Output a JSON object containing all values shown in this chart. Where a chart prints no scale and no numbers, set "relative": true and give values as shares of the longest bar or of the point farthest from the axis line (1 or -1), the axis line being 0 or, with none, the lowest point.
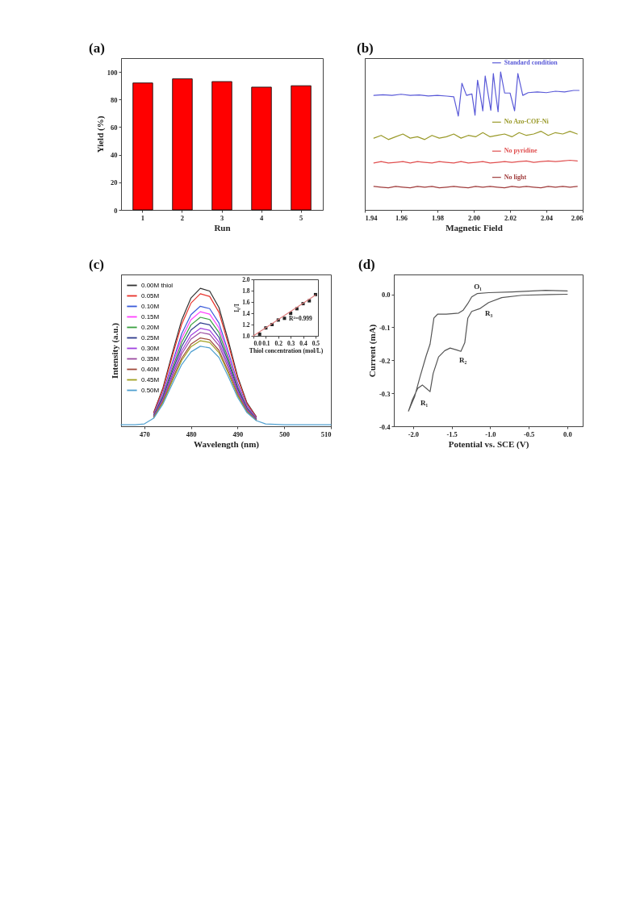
{
  "chart_data": [
    {
      "type": "bar",
      "title": "(a)",
      "xlabel": "Run",
      "ylabel": "Yield (%)",
      "categories": [
        "1",
        "2",
        "3",
        "4",
        "5"
      ],
      "values": [
        92,
        95,
        93,
        89,
        90
      ],
      "color": "#ff0000",
      "ylim": [
        0,
        110
      ],
      "yticks": [
        0,
        20,
        40,
        60,
        80,
        100
      ]
    },
    {
      "type": "line",
      "title": "(b)",
      "xlabel": "Magnetic Field",
      "relative": true,
      "legend": "right",
      "xlim": [
        1.94,
        2.06
      ],
      "xticks": [
        1.94,
        1.96,
        1.98,
        {
          "value": 2,
          "label": "2.00"
        },
        2.02,
        2.04,
        2.06
      ],
      "series": [
        {
          "name": "Standard condition",
          "color": "#5a5ad8",
          "x": [
            1.945,
            1.95,
            1.955,
            1.96,
            1.965,
            1.97,
            1.975,
            1.98,
            1.985,
            1.989,
            1.9915,
            1.9935,
            1.996,
            1.999,
            2.0007,
            2.0021,
            2.0035,
            2.005,
            2.0063,
            2.0078,
            2.0094,
            2.0108,
            2.012,
            2.0134,
            2.0148,
            2.017,
            2.02,
            2.0225,
            2.0243,
            2.027,
            2.03,
            2.035,
            2.04,
            2.045,
            2.05,
            2.055,
            2.058
          ],
          "values": [
            0.83,
            0.835,
            0.83,
            0.838,
            0.83,
            0.833,
            0.826,
            0.83,
            0.825,
            0.82,
            0.68,
            0.918,
            0.83,
            0.84,
            0.687,
            0.94,
            0.84,
            0.718,
            0.97,
            0.85,
            0.722,
            0.988,
            0.85,
            0.711,
            1.0,
            0.847,
            0.847,
            0.718,
            0.988,
            0.83,
            0.85,
            0.855,
            0.85,
            0.86,
            0.855,
            0.866,
            0.866
          ]
        },
        {
          "name": "No Azo-COF-Ni",
          "color": "#9a9a2a",
          "x": [
            1.945,
            1.949,
            1.953,
            1.957,
            1.961,
            1.965,
            1.969,
            1.973,
            1.977,
            1.981,
            1.985,
            1.989,
            1.993,
            1.997,
            2.001,
            2.005,
            2.009,
            2.013,
            2.017,
            2.021,
            2.025,
            2.029,
            2.033,
            2.037,
            2.041,
            2.045,
            2.049,
            2.053,
            2.057
          ],
          "values": [
            0.52,
            0.54,
            0.51,
            0.53,
            0.55,
            0.52,
            0.53,
            0.51,
            0.54,
            0.52,
            0.53,
            0.55,
            0.52,
            0.54,
            0.53,
            0.56,
            0.53,
            0.54,
            0.55,
            0.53,
            0.56,
            0.54,
            0.55,
            0.57,
            0.54,
            0.56,
            0.55,
            0.57,
            0.55
          ]
        },
        {
          "name": "No pyridine",
          "color": "#e05050",
          "x": [
            1.945,
            1.949,
            1.953,
            1.957,
            1.961,
            1.965,
            1.969,
            1.973,
            1.977,
            1.981,
            1.985,
            1.989,
            1.993,
            1.997,
            2.001,
            2.005,
            2.009,
            2.013,
            2.017,
            2.021,
            2.025,
            2.029,
            2.033,
            2.037,
            2.041,
            2.045,
            2.049,
            2.053,
            2.057
          ],
          "values": [
            0.34,
            0.35,
            0.34,
            0.345,
            0.35,
            0.34,
            0.35,
            0.345,
            0.34,
            0.35,
            0.345,
            0.34,
            0.35,
            0.34,
            0.345,
            0.35,
            0.34,
            0.345,
            0.35,
            0.345,
            0.35,
            0.355,
            0.345,
            0.35,
            0.355,
            0.35,
            0.355,
            0.36,
            0.355
          ]
        },
        {
          "name": "No light",
          "color": "#a03c3c",
          "x": [
            1.945,
            1.949,
            1.953,
            1.957,
            1.961,
            1.965,
            1.969,
            1.973,
            1.977,
            1.981,
            1.985,
            1.989,
            1.993,
            1.997,
            2.001,
            2.005,
            2.009,
            2.013,
            2.017,
            2.021,
            2.025,
            2.029,
            2.033,
            2.037,
            2.041,
            2.045,
            2.049,
            2.053,
            2.057
          ],
          "values": [
            0.17,
            0.165,
            0.16,
            0.17,
            0.165,
            0.16,
            0.17,
            0.165,
            0.17,
            0.16,
            0.165,
            0.17,
            0.165,
            0.16,
            0.17,
            0.165,
            0.17,
            0.165,
            0.16,
            0.17,
            0.165,
            0.17,
            0.165,
            0.16,
            0.17,
            0.165,
            0.17,
            0.165,
            0.17
          ]
        }
      ]
    },
    {
      "type": "line",
      "title": "(c)",
      "xlabel": "Wavelength (nm)",
      "ylabel": "Intensity (a.u.)",
      "relative": true,
      "legend": "top left",
      "xlim": [
        465,
        510
      ],
      "xticks": [
        470,
        480,
        490,
        500,
        510
      ],
      "x": [
        465,
        468,
        470,
        472,
        474,
        476,
        478,
        480,
        482,
        484,
        486,
        488,
        490,
        492,
        494,
        496,
        500,
        505,
        510
      ],
      "series": [
        {
          "name": "0.00M thiol",
          "color": "#333333",
          "values": [
            null,
            null,
            null,
            0.1,
            0.28,
            0.53,
            0.77,
            0.93,
            1.0,
            0.98,
            0.86,
            0.62,
            0.36,
            0.17,
            0.07,
            null,
            null,
            null,
            null
          ]
        },
        {
          "name": "0.05M",
          "color": "#e8312a",
          "values": [
            null,
            null,
            null,
            0.096,
            0.269,
            0.509,
            0.739,
            0.893,
            0.96,
            0.941,
            0.826,
            0.595,
            0.346,
            0.163,
            0.067,
            null,
            null,
            null,
            null
          ]
        },
        {
          "name": "0.10M",
          "color": "#3a5bd9",
          "values": [
            null,
            null,
            null,
            0.087,
            0.244,
            0.461,
            0.67,
            0.809,
            0.87,
            0.853,
            0.748,
            0.539,
            0.313,
            0.148,
            0.061,
            null,
            null,
            null,
            null
          ]
        },
        {
          "name": "0.15M",
          "color": "#ff40ff",
          "values": [
            null,
            null,
            null,
            0.083,
            0.232,
            0.44,
            0.639,
            0.772,
            0.83,
            0.813,
            0.714,
            0.515,
            0.299,
            0.141,
            0.058,
            null,
            null,
            null,
            null
          ]
        },
        {
          "name": "0.20M",
          "color": "#3aa040",
          "values": [
            null,
            null,
            null,
            0.079,
            0.221,
            0.419,
            0.608,
            0.735,
            0.79,
            0.774,
            0.679,
            0.49,
            0.284,
            0.134,
            0.055,
            null,
            null,
            null,
            null
          ]
        },
        {
          "name": "0.25M",
          "color": "#2e3a8c",
          "values": [
            null,
            null,
            null,
            0.075,
            0.21,
            0.398,
            0.578,
            0.698,
            0.75,
            0.735,
            0.645,
            0.465,
            0.27,
            0.128,
            0.053,
            null,
            null,
            null,
            null
          ]
        },
        {
          "name": "0.30M",
          "color": "#a040e0",
          "values": [
            null,
            null,
            null,
            0.071,
            0.199,
            0.376,
            0.547,
            0.66,
            0.71,
            0.696,
            0.611,
            0.44,
            0.256,
            0.121,
            0.05,
            null,
            null,
            null,
            null
          ]
        },
        {
          "name": "0.35M",
          "color": "#9a4aa0",
          "values": [
            null,
            null,
            null,
            0.068,
            0.19,
            0.36,
            0.524,
            0.632,
            0.68,
            0.666,
            0.585,
            0.422,
            0.245,
            0.116,
            0.048,
            null,
            null,
            null,
            null
          ]
        },
        {
          "name": "0.40M",
          "color": "#a04a3a",
          "values": [
            null,
            null,
            null,
            0.064,
            0.179,
            0.339,
            0.493,
            0.595,
            0.64,
            0.627,
            0.55,
            0.397,
            0.23,
            0.109,
            0.045,
            null,
            null,
            null,
            null
          ]
        },
        {
          "name": "0.45M",
          "color": "#a0a020",
          "values": [
            null,
            null,
            null,
            0.062,
            0.174,
            0.329,
            0.477,
            0.577,
            0.62,
            0.608,
            0.533,
            0.384,
            0.223,
            0.105,
            0.043,
            null,
            null,
            null,
            null
          ]
        },
        {
          "name": "0.50M",
          "color": "#50a0d0",
          "values": [
            0.011,
            0.011,
            0.017,
            0.058,
            0.162,
            0.307,
            0.447,
            0.539,
            0.58,
            0.568,
            0.499,
            0.36,
            0.209,
            0.099,
            0.041,
            0.017,
            0.011,
            0.011,
            0.011
          ]
        }
      ]
    },
    {
      "type": "scatter",
      "xlabel": "Thiol concentration (mol/L)",
      "ylabel": "I₀/I",
      "annotations": [
        "R²=0.999"
      ],
      "xlim": [
        0,
        0.52
      ],
      "xticks": [
        {
          "value": 0,
          "label": "0.0"
        },
        0.1,
        0.2,
        0.3,
        0.4,
        0.5
      ],
      "ylim": [
        1,
        2
      ],
      "yticks": [
        {
          "value": 1,
          "label": "1.0"
        },
        1.2,
        1.4,
        1.6,
        1.8,
        {
          "value": 2,
          "label": "2.0"
        }
      ],
      "x": [
        0.05,
        0.1,
        0.15,
        0.2,
        0.25,
        0.3,
        0.35,
        0.4,
        0.45,
        0.5
      ],
      "series": [
        {
          "color": "#222222",
          "marker": "square",
          "values": [
            1.03,
            1.14,
            1.2,
            1.28,
            1.31,
            1.4,
            1.48,
            1.57,
            1.62,
            1.73
          ]
        },
        {
          "type": "line",
          "color": "#e08080",
          "x": [
            0,
            0.5
          ],
          "values": [
            1.0,
            1.72
          ]
        }
      ]
    },
    {
      "type": "line",
      "title": "(d)",
      "xlabel": "Potential vs. SCE (V)",
      "ylabel": "Current (mA)",
      "xlim": [
        -2.25,
        0.2
      ],
      "xticks": [
        {
          "value": -2,
          "label": "-2.0"
        },
        -1.5,
        {
          "value": -1,
          "label": "-1.0"
        },
        -0.5,
        {
          "value": 0,
          "label": "0.0"
        }
      ],
      "ylim": [
        -0.4,
        0.06
      ],
      "yticks": [
        -0.4,
        -0.3,
        -0.2,
        -0.1,
        {
          "value": 0,
          "label": "0.0"
        }
      ],
      "annotations": [
        {
          "text": "O₁",
          "x": -1.17,
          "y": 0.002
        },
        {
          "text": "R₃",
          "x": -1.13,
          "y": -0.043
        },
        {
          "text": "R₂",
          "x": -1.38,
          "y": -0.173
        },
        {
          "text": "R₁",
          "x": -1.78,
          "y": -0.295
        }
      ],
      "series": [
        {
          "color": "#555555",
          "x": [
            0,
            -0.28,
            -0.72,
            -1.02,
            -1.17,
            -1.24,
            -1.29,
            -1.35,
            -1.41,
            -1.57,
            -1.68,
            -1.73,
            -1.78,
            -1.83,
            -1.91,
            -1.98,
            -2.06,
            -2.01,
            -1.94,
            -1.88,
            -1.83,
            -1.78,
            -1.74,
            -1.67,
            -1.59,
            -1.52,
            -1.43,
            -1.38,
            -1.33,
            -1.29,
            -1.24,
            -1.13,
            -1.02,
            -0.85,
            -0.59,
            -0.24,
            0
          ],
          "values": [
            0.01,
            0.012,
            0.007,
            0.005,
            0.002,
            -0.008,
            -0.028,
            -0.048,
            -0.057,
            -0.06,
            -0.06,
            -0.072,
            -0.151,
            -0.186,
            -0.25,
            -0.31,
            -0.354,
            -0.32,
            -0.285,
            -0.275,
            -0.285,
            -0.295,
            -0.24,
            -0.19,
            -0.171,
            -0.163,
            -0.169,
            -0.173,
            -0.147,
            -0.072,
            -0.052,
            -0.043,
            -0.025,
            -0.01,
            -0.003,
            -0.001,
            0
          ]
        }
      ]
    }
  ]
}
